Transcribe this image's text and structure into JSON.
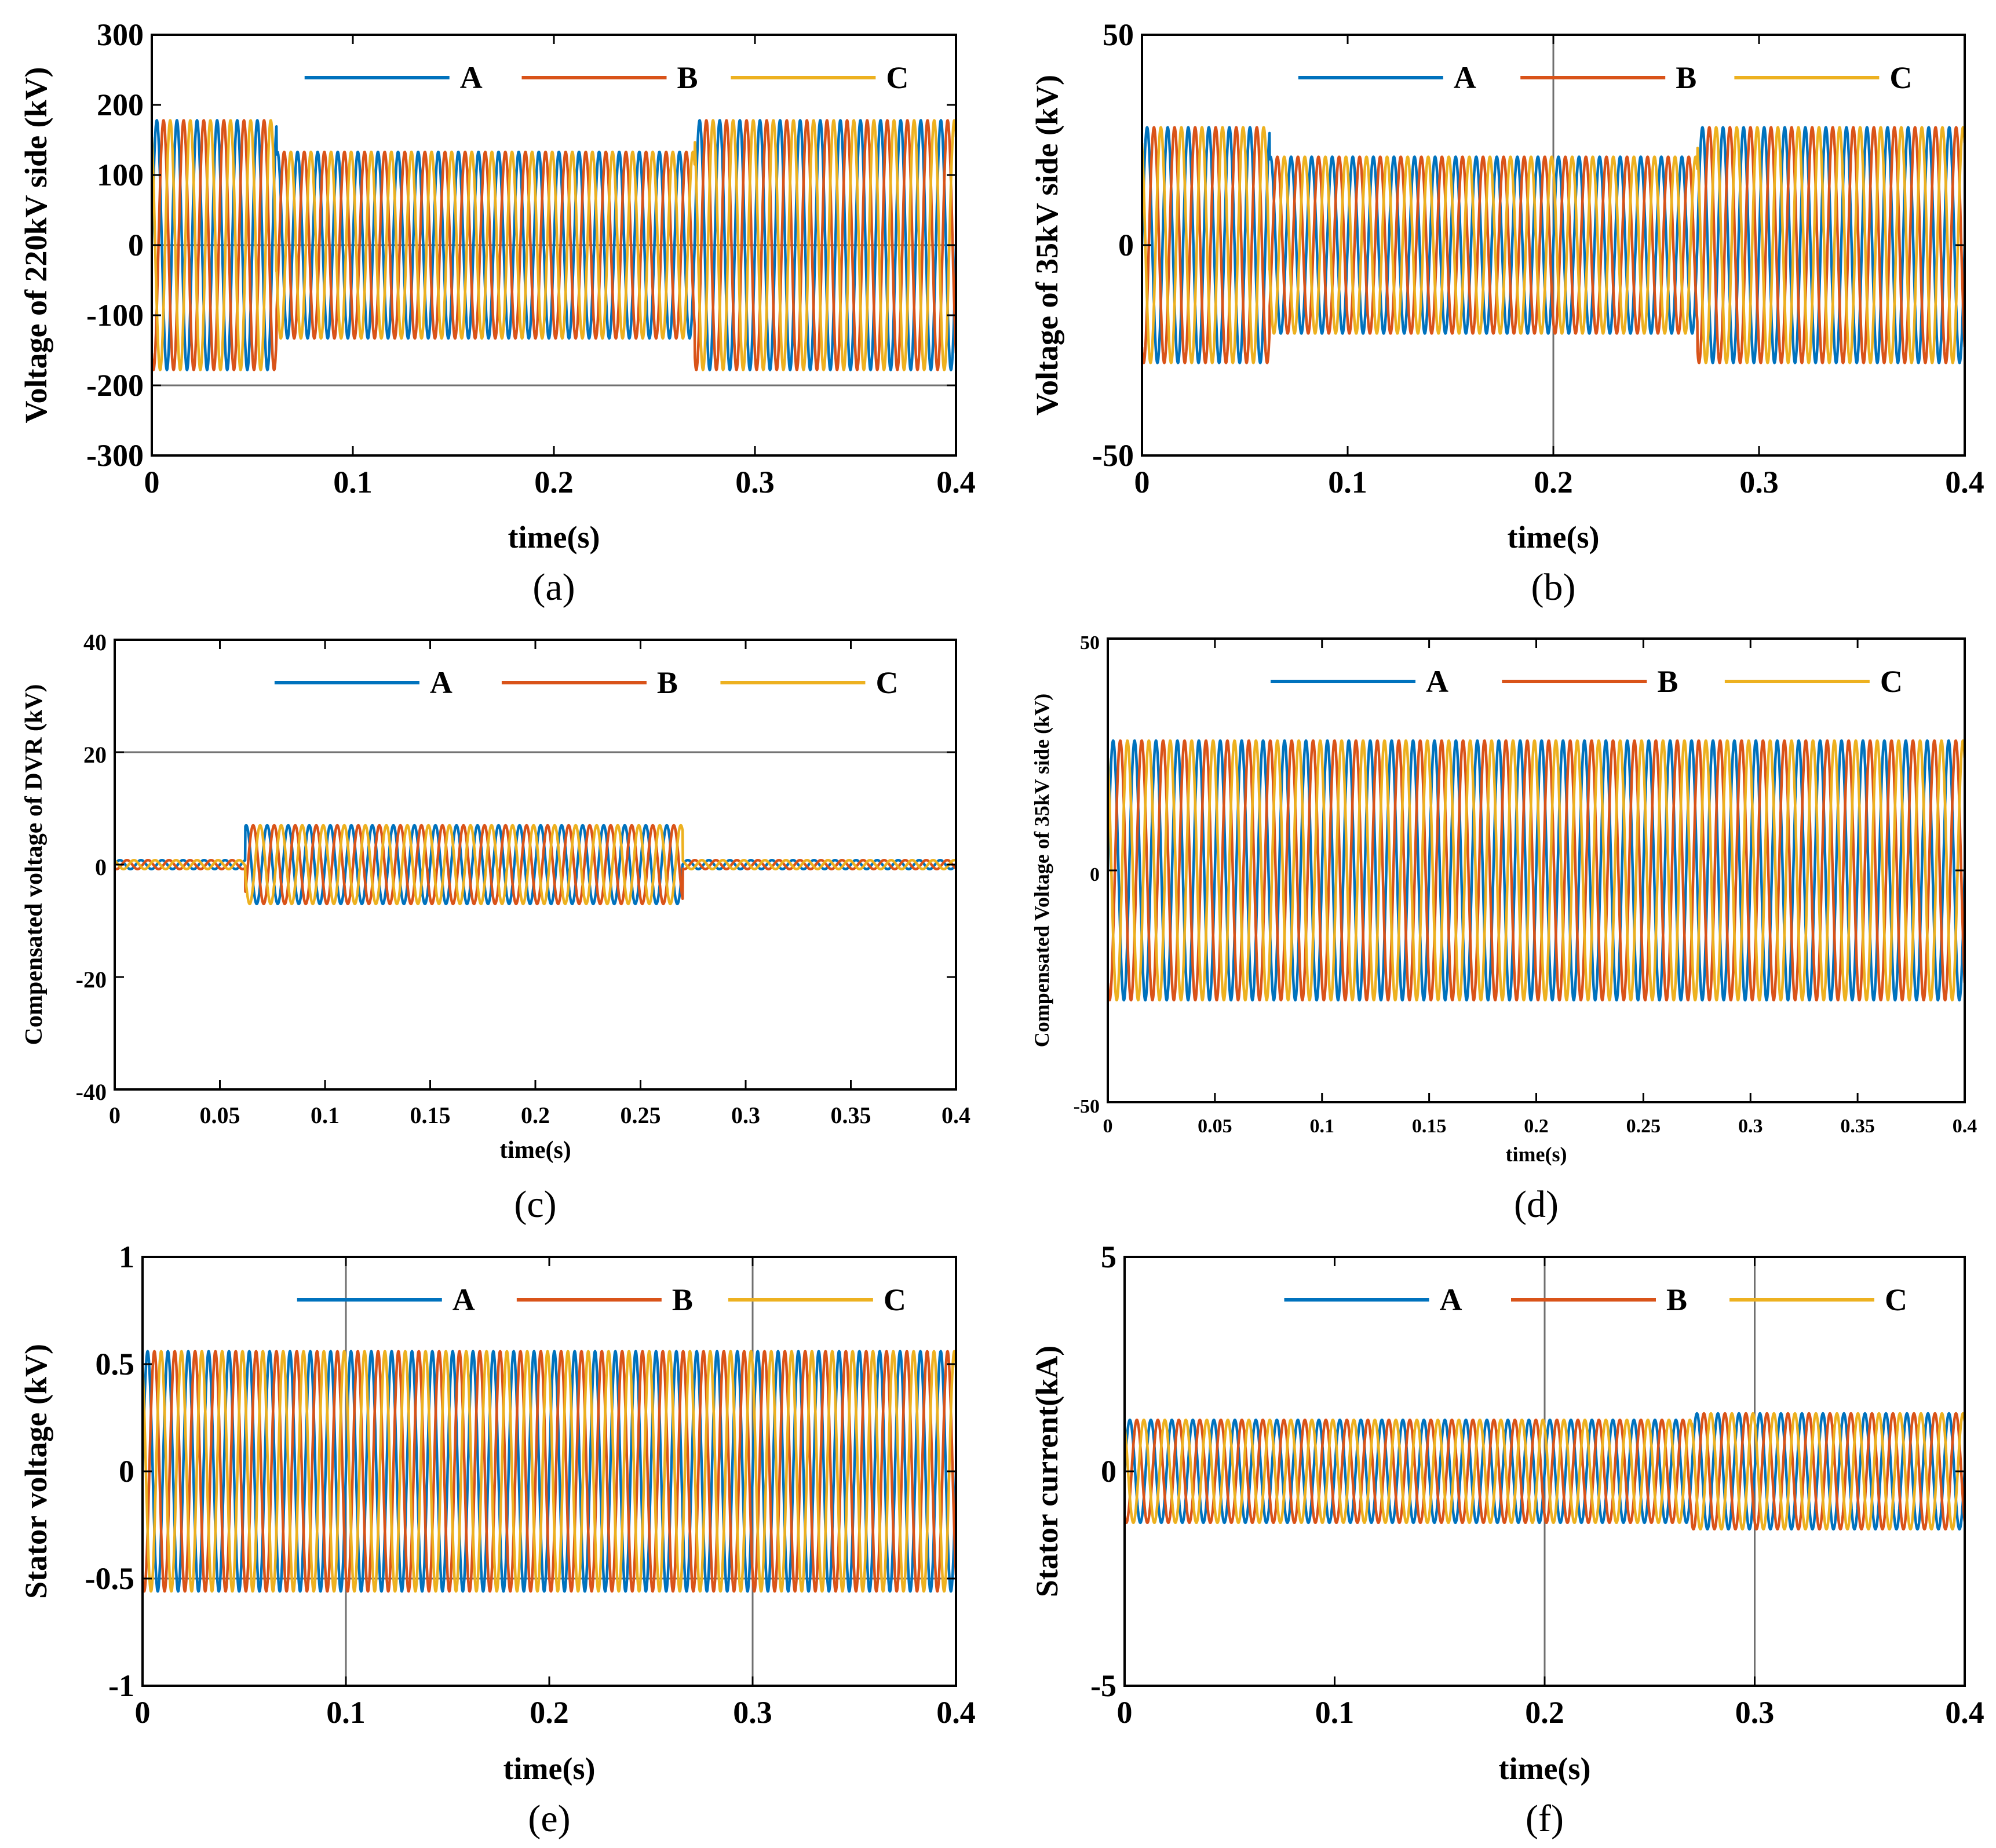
{
  "figure": {
    "legend_labels": [
      "A",
      "B",
      "C"
    ],
    "colors": {
      "A": "#0072BD",
      "B": "#D95319",
      "C": "#EDB120"
    }
  },
  "chart_data": [
    {
      "id": "a",
      "type": "line",
      "caption": "(a)",
      "ylabel": "Voltage of 220kV side (kV)",
      "xlabel": "time(s)",
      "xlim": [
        0,
        0.4
      ],
      "ylim": [
        -300,
        300
      ],
      "xticks": [
        0,
        0.1,
        0.2,
        0.3,
        0.4
      ],
      "xtick_labels": [
        "0",
        "0.1",
        "0.2",
        "0.3",
        "0.4"
      ],
      "yticks": [
        -300,
        -200,
        -100,
        0,
        100,
        200,
        300
      ],
      "ytick_labels": [
        "-300",
        "-200",
        "-100",
        "0",
        "100",
        "200",
        "300"
      ],
      "frequency_hz": 100,
      "series": [
        {
          "name": "A",
          "phase_deg": 0
        },
        {
          "name": "B",
          "phase_deg": -120
        },
        {
          "name": "C",
          "phase_deg": 120
        }
      ],
      "amplitude_segments": [
        [
          0,
          0.062,
          178
        ],
        [
          0.062,
          0.27,
          133
        ],
        [
          0.27,
          0.4,
          178
        ]
      ],
      "ref_hlines": [
        0,
        -200
      ]
    },
    {
      "id": "b",
      "type": "line",
      "caption": "(b)",
      "ylabel": "Voltage of 35kV side (kV)",
      "xlabel": "time(s)",
      "xlim": [
        0,
        0.4
      ],
      "ylim": [
        -50,
        50
      ],
      "xticks": [
        0,
        0.1,
        0.2,
        0.3,
        0.4
      ],
      "xtick_labels": [
        "0",
        "0.1",
        "0.2",
        "0.3",
        "0.4"
      ],
      "yticks": [
        -50,
        0,
        50
      ],
      "ytick_labels": [
        "-50",
        "0",
        "50"
      ],
      "frequency_hz": 100,
      "series": [
        {
          "name": "A",
          "phase_deg": 0
        },
        {
          "name": "B",
          "phase_deg": -120
        },
        {
          "name": "C",
          "phase_deg": 120
        }
      ],
      "amplitude_segments": [
        [
          0,
          0.062,
          28
        ],
        [
          0.062,
          0.27,
          21
        ],
        [
          0.27,
          0.4,
          28
        ]
      ],
      "ref_vlines": [
        0.2
      ]
    },
    {
      "id": "c",
      "type": "line",
      "caption": "(c)",
      "ylabel": "Compensated voltage of DVR (kV)",
      "xlabel": "time(s)",
      "xlim": [
        0,
        0.4
      ],
      "ylim": [
        -40,
        40
      ],
      "xticks": [
        0,
        0.05,
        0.1,
        0.15,
        0.2,
        0.25,
        0.3,
        0.35,
        0.4
      ],
      "xtick_labels": [
        "0",
        "0.05",
        "0.1",
        "0.15",
        "0.2",
        "0.25",
        "0.3",
        "0.35",
        "0.4"
      ],
      "yticks": [
        -40,
        -20,
        0,
        20,
        40
      ],
      "ytick_labels": [
        "-40",
        "-20",
        "0",
        "20",
        "40"
      ],
      "frequency_hz": 100,
      "series": [
        {
          "name": "A",
          "phase_deg": 0
        },
        {
          "name": "B",
          "phase_deg": -120
        },
        {
          "name": "C",
          "phase_deg": 120
        }
      ],
      "amplitude_segments": [
        [
          0,
          0.062,
          0.8
        ],
        [
          0.062,
          0.27,
          7
        ],
        [
          0.27,
          0.4,
          0.8
        ]
      ],
      "ref_hlines": [
        20
      ]
    },
    {
      "id": "d",
      "type": "line",
      "caption": "(d)",
      "ylabel": "Compensated Voltage of 35kV side (kV)",
      "xlabel": "time(s)",
      "xlim": [
        0,
        0.4
      ],
      "ylim": [
        -50,
        50
      ],
      "xticks": [
        0,
        0.05,
        0.1,
        0.15,
        0.2,
        0.25,
        0.3,
        0.35,
        0.4
      ],
      "xtick_labels": [
        "0",
        "0.05",
        "0.1",
        "0.15",
        "0.2",
        "0.25",
        "0.3",
        "0.35",
        "0.4"
      ],
      "yticks": [
        -50,
        0,
        50
      ],
      "ytick_labels": [
        "-50",
        "0",
        "50"
      ],
      "frequency_hz": 100,
      "series": [
        {
          "name": "A",
          "phase_deg": 0
        },
        {
          "name": "B",
          "phase_deg": -120
        },
        {
          "name": "C",
          "phase_deg": 120
        }
      ],
      "amplitude_segments": [
        [
          0,
          0.4,
          28
        ]
      ]
    },
    {
      "id": "e",
      "type": "line",
      "caption": "(e)",
      "ylabel": "Stator voltage (kV)",
      "xlabel": "time(s)",
      "xlim": [
        0,
        0.4
      ],
      "ylim": [
        -1,
        1
      ],
      "xticks": [
        0,
        0.1,
        0.2,
        0.3,
        0.4
      ],
      "xtick_labels": [
        "0",
        "0.1",
        "0.2",
        "0.3",
        "0.4"
      ],
      "yticks": [
        -1,
        -0.5,
        0,
        0.5,
        1
      ],
      "ytick_labels": [
        "-1",
        "-0.5",
        "0",
        "0.5",
        "1"
      ],
      "frequency_hz": 100,
      "series": [
        {
          "name": "A",
          "phase_deg": 0
        },
        {
          "name": "B",
          "phase_deg": -120
        },
        {
          "name": "C",
          "phase_deg": 120
        }
      ],
      "amplitude_segments": [
        [
          0,
          0.4,
          0.56
        ]
      ],
      "ref_vlines": [
        0.1,
        0.3
      ],
      "ref_hlines": [
        -0.5
      ]
    },
    {
      "id": "f",
      "type": "line",
      "caption": "(f)",
      "ylabel": "Stator current(kA)",
      "xlabel": "time(s)",
      "xlim": [
        0,
        0.4
      ],
      "ylim": [
        -5,
        5
      ],
      "xticks": [
        0,
        0.1,
        0.2,
        0.3,
        0.4
      ],
      "xtick_labels": [
        "0",
        "0.1",
        "0.2",
        "0.3",
        "0.4"
      ],
      "yticks": [
        -5,
        0,
        5
      ],
      "ytick_labels": [
        "-5",
        "0",
        "5"
      ],
      "frequency_hz": 100,
      "series": [
        {
          "name": "A",
          "phase_deg": 0
        },
        {
          "name": "B",
          "phase_deg": -120
        },
        {
          "name": "C",
          "phase_deg": 120
        }
      ],
      "amplitude_segments": [
        [
          0,
          0.27,
          1.2
        ],
        [
          0.27,
          0.4,
          1.35
        ]
      ],
      "ref_vlines": [
        0.2,
        0.3
      ]
    }
  ]
}
